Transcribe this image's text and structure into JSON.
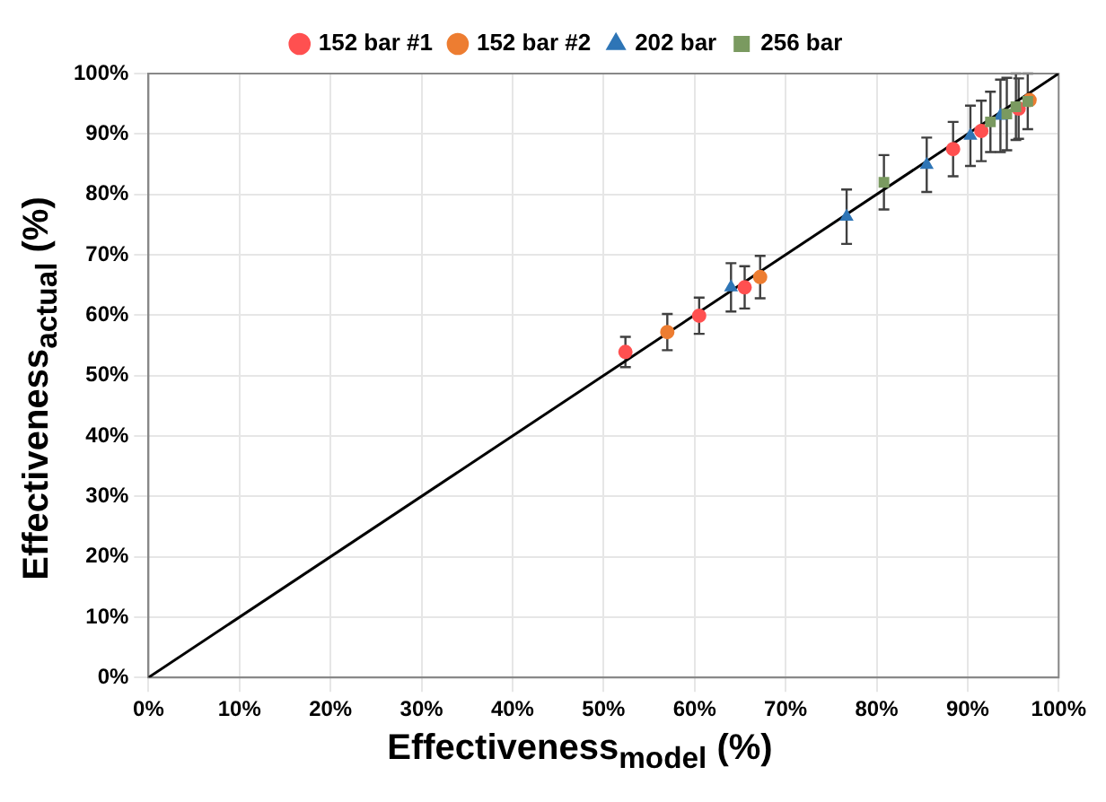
{
  "chart_data": {
    "type": "scatter",
    "xlabel": "Effectiveness$_{model}$ (%)",
    "ylabel": "Effectiveness$_{actual}$ (%)",
    "xlim": [
      0,
      100
    ],
    "ylim": [
      0,
      100
    ],
    "xticks": [
      {
        "value": 0,
        "label": "0%"
      },
      {
        "value": 10,
        "label": "10%"
      },
      {
        "value": 20,
        "label": "20%"
      },
      {
        "value": 30,
        "label": "30%"
      },
      {
        "value": 40,
        "label": "40%"
      },
      {
        "value": 50,
        "label": "50%"
      },
      {
        "value": 60,
        "label": "60%"
      },
      {
        "value": 70,
        "label": "70%"
      },
      {
        "value": 80,
        "label": "80%"
      },
      {
        "value": 90,
        "label": "90%"
      },
      {
        "value": 100,
        "label": "100%"
      }
    ],
    "yticks": [
      {
        "value": 0,
        "label": "0%"
      },
      {
        "value": 10,
        "label": "10%"
      },
      {
        "value": 20,
        "label": "20%"
      },
      {
        "value": 30,
        "label": "30%"
      },
      {
        "value": 40,
        "label": "40%"
      },
      {
        "value": 50,
        "label": "50%"
      },
      {
        "value": 60,
        "label": "60%"
      },
      {
        "value": 70,
        "label": "70%"
      },
      {
        "value": 80,
        "label": "80%"
      },
      {
        "value": 90,
        "label": "90%"
      },
      {
        "value": 100,
        "label": "100%"
      }
    ],
    "grid": true,
    "legend": "top",
    "series": [
      {
        "name": "152 bar #1",
        "color": "#ff5050",
        "marker": "circle",
        "x": [
          52.4,
          60.5,
          65.5,
          88.4,
          91.5,
          95.6
        ],
        "values": [
          53.9,
          59.9,
          64.6,
          87.5,
          90.5,
          94.2
        ],
        "errors": [
          2.5,
          3,
          3.5,
          4.5,
          5,
          5
        ]
      },
      {
        "name": "152 bar #2",
        "color": "#ed7d31",
        "marker": "circle",
        "x": [
          57.0,
          67.2,
          96.8
        ],
        "values": [
          57.2,
          66.3,
          95.6
        ],
        "errors": [
          3,
          3.5,
          null
        ]
      },
      {
        "name": "202 bar",
        "color": "#2e75b6",
        "marker": "triangle",
        "x": [
          64.0,
          76.7,
          85.5,
          90.3,
          93.6
        ],
        "values": [
          64.6,
          76.3,
          84.9,
          89.7,
          93.0
        ],
        "errors": [
          4,
          4.5,
          4.5,
          5,
          6
        ]
      },
      {
        "name": "256 bar",
        "color": "#7a9a60",
        "marker": "square",
        "x": [
          80.8,
          92.5,
          94.3,
          95.3,
          96.6
        ],
        "values": [
          82.0,
          92.0,
          93.3,
          94.5,
          95.4
        ],
        "errors": [
          4.5,
          5,
          6,
          5.5,
          4.6
        ]
      },
      {
        "type": "line",
        "color": "#000000",
        "marker": "none",
        "x": [
          0,
          100
        ],
        "values": [
          0,
          100
        ]
      }
    ]
  }
}
